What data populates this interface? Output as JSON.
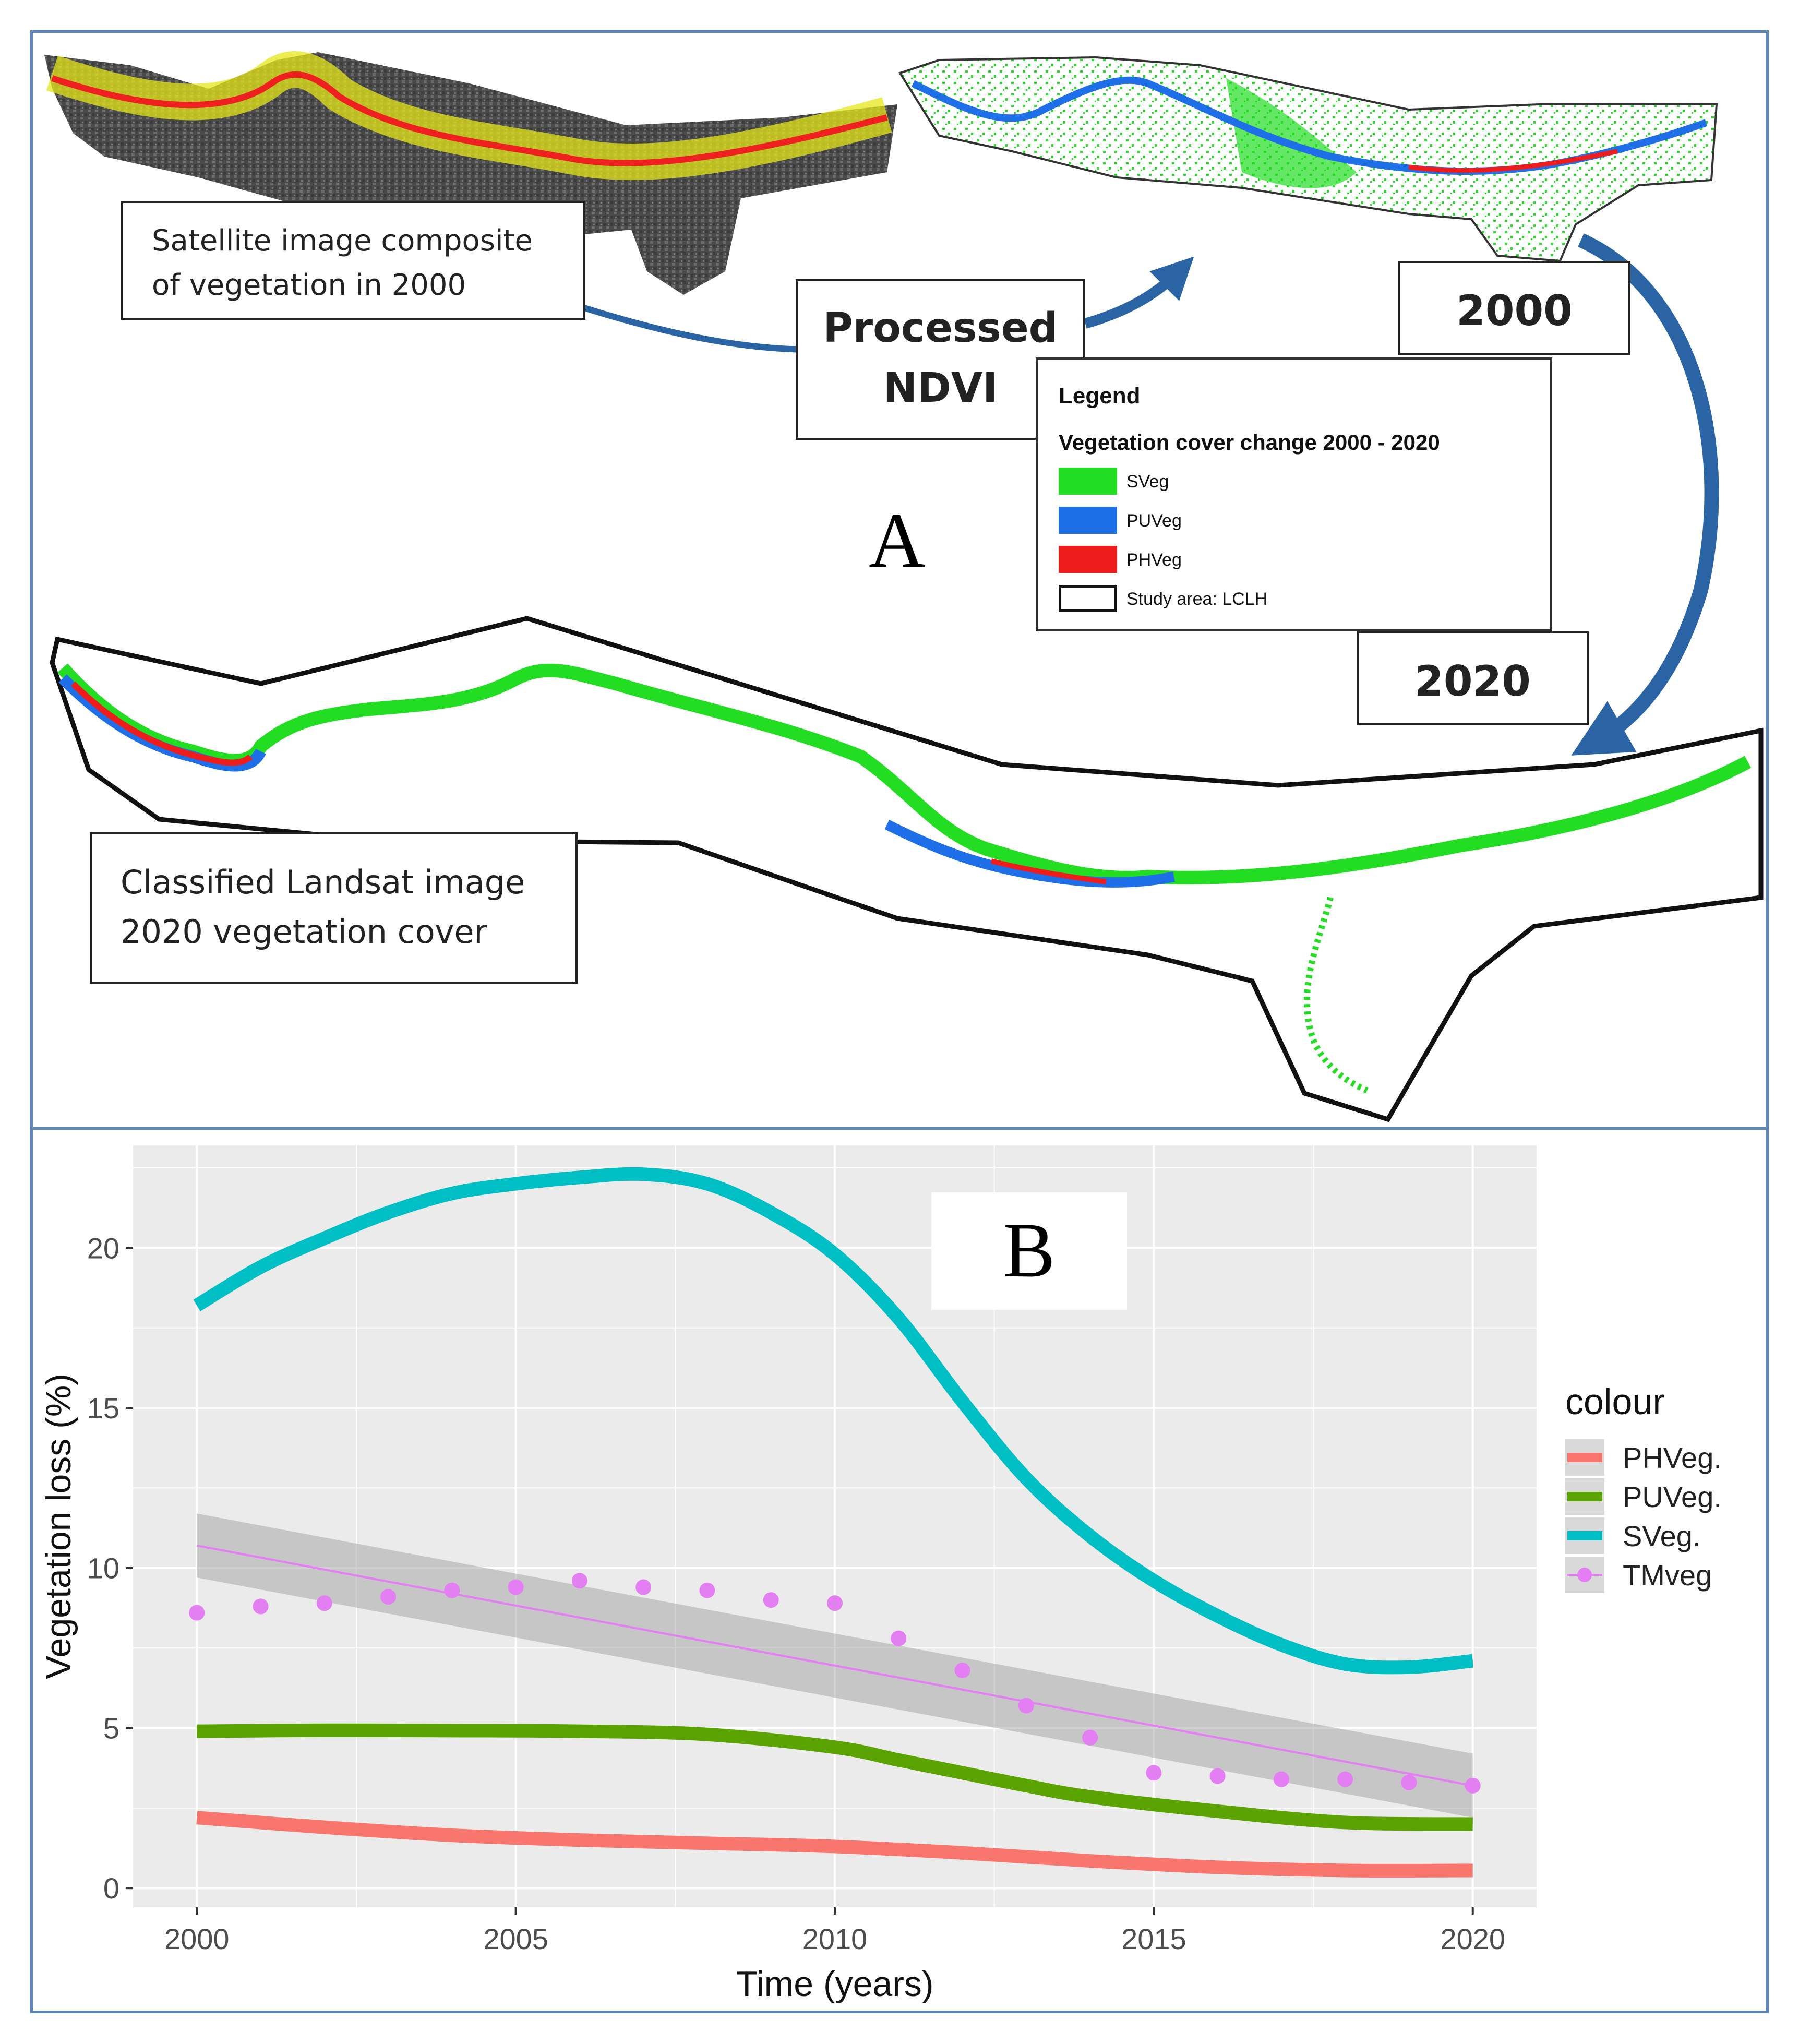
{
  "panel_a": {
    "letter": "A",
    "callouts": {
      "composite": [
        "Satellite image composite",
        "of vegetation in 2000"
      ],
      "processed": [
        "Processed",
        "NDVI"
      ],
      "year_2000": "2000",
      "year_2020": "2020",
      "classified": [
        "Classified Landsat image",
        "2020 vegetation cover"
      ]
    },
    "legend": {
      "title": "Legend",
      "subtitle": "Vegetation cover change 2000 - 2020",
      "items": [
        {
          "label": "SVeg",
          "color": "#22dd22"
        },
        {
          "label": "PUVeg",
          "color": "#1f6fe8"
        },
        {
          "label": "PHVeg",
          "color": "#ee1c1c"
        },
        {
          "label": "Study area: LCLH",
          "color": "#ffffff"
        }
      ]
    }
  },
  "panel_b": {
    "letter": "B"
  },
  "chart_data": {
    "type": "line",
    "title": "",
    "xlabel": "Time (years)",
    "ylabel": "Vegetation loss (%)",
    "xlim": [
      1999.0,
      2021.0
    ],
    "ylim": [
      -0.6,
      23.2
    ],
    "xticks": [
      2000,
      2005,
      2010,
      2015,
      2020
    ],
    "yticks": [
      0,
      5,
      10,
      15,
      20
    ],
    "legend_title": "colour",
    "legend_position": "right",
    "background": "#ebebeb",
    "series": [
      {
        "name": "PHVeg.",
        "color": "#f8766d",
        "style": "smooth-line",
        "x": [
          2000,
          2002,
          2004,
          2006,
          2008,
          2010,
          2012,
          2014,
          2016,
          2018,
          2020
        ],
        "y": [
          2.2,
          1.9,
          1.65,
          1.5,
          1.4,
          1.3,
          1.1,
          0.85,
          0.65,
          0.55,
          0.55
        ]
      },
      {
        "name": "PUVeg.",
        "color": "#5ba300",
        "style": "smooth-line",
        "x": [
          2000,
          2002,
          2004,
          2006,
          2008,
          2010,
          2011,
          2012,
          2013,
          2014,
          2016,
          2018,
          2020
        ],
        "y": [
          4.9,
          4.93,
          4.92,
          4.9,
          4.8,
          4.4,
          4.0,
          3.6,
          3.2,
          2.85,
          2.4,
          2.05,
          2.0
        ]
      },
      {
        "name": "SVeg.",
        "color": "#00bfc4",
        "style": "smooth-line",
        "x": [
          2000,
          2001,
          2002,
          2003,
          2004,
          2005,
          2006,
          2007,
          2008,
          2009,
          2010,
          2011,
          2012,
          2013,
          2014,
          2015,
          2016,
          2017,
          2018,
          2019,
          2020
        ],
        "y": [
          18.2,
          19.4,
          20.3,
          21.1,
          21.7,
          22.0,
          22.2,
          22.3,
          22.0,
          21.1,
          19.8,
          17.8,
          15.2,
          12.8,
          11.0,
          9.6,
          8.5,
          7.6,
          7.0,
          6.9,
          7.1
        ]
      },
      {
        "name": "TMveg",
        "color": "#e37ef3",
        "style": "points-with-linear-fit",
        "x": [
          2000,
          2001,
          2002,
          2003,
          2004,
          2005,
          2006,
          2007,
          2008,
          2009,
          2010,
          2011,
          2012,
          2013,
          2014,
          2015,
          2016,
          2017,
          2018,
          2019,
          2020
        ],
        "y": [
          8.6,
          8.8,
          8.9,
          9.1,
          9.3,
          9.4,
          9.6,
          9.4,
          9.3,
          9.0,
          8.9,
          7.8,
          6.8,
          5.7,
          4.7,
          3.6,
          3.5,
          3.4,
          3.4,
          3.3,
          3.2
        ],
        "fit": {
          "x": [
            2000,
            2020
          ],
          "y": [
            10.7,
            3.2
          ]
        },
        "band": {
          "upper": [
            11.7,
            4.2
          ],
          "lower": [
            9.7,
            2.2
          ]
        }
      }
    ]
  }
}
